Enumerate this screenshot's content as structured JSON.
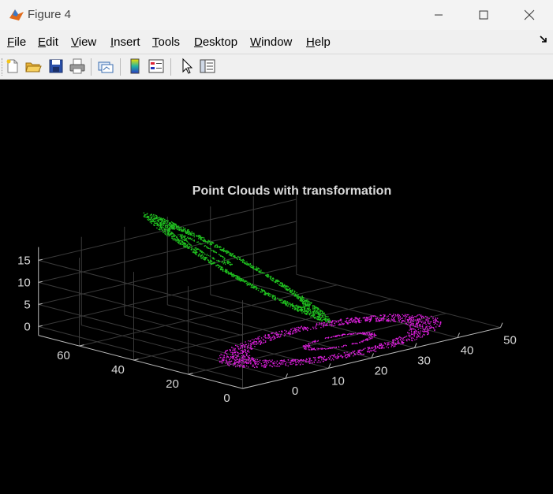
{
  "window": {
    "title": "Figure 4",
    "buttons": [
      "minimize-icon",
      "maximize-icon",
      "close-icon"
    ]
  },
  "menu": [
    {
      "label": "File",
      "key": "F"
    },
    {
      "label": "Edit",
      "key": "E"
    },
    {
      "label": "View",
      "key": "V"
    },
    {
      "label": "Insert",
      "key": "I"
    },
    {
      "label": "Tools",
      "key": "T"
    },
    {
      "label": "Desktop",
      "key": "D"
    },
    {
      "label": "Window",
      "key": "W"
    },
    {
      "label": "Help",
      "key": "H"
    }
  ],
  "toolbar": [
    "new-figure-icon",
    "open-file-icon",
    "save-icon",
    "print-icon",
    "link-plot-icon",
    "colorbar-icon",
    "legend-icon",
    "pointer-icon",
    "property-inspector-icon"
  ],
  "colors": {
    "series1": "#20c020",
    "series2": "#e020e0",
    "background": "#000000",
    "text": "#d9d9d9"
  },
  "chart_data": {
    "type": "scatter",
    "title": "Point Clouds with transformation",
    "x_axis": {
      "range": [
        -10,
        50
      ],
      "ticks": [
        "0",
        "10",
        "20",
        "30",
        "40",
        "50"
      ]
    },
    "y_axis": {
      "range": [
        0,
        75
      ],
      "ticks": [
        "0",
        "20",
        "40",
        "60"
      ]
    },
    "z_axis": {
      "range": [
        -2,
        18
      ],
      "ticks": [
        "0",
        "5",
        "10",
        "15"
      ]
    },
    "grid": true,
    "series": [
      {
        "color": "#20c020",
        "shape": "tilted-ring",
        "approx_points": [
          [
            -8,
            70,
            17
          ],
          [
            0,
            45,
            12
          ],
          [
            12,
            25,
            6
          ],
          [
            20,
            10,
            1
          ]
        ]
      },
      {
        "color": "#e020e0",
        "shape": "flat-ring",
        "approx_points": [
          [
            0,
            10,
            0
          ],
          [
            18,
            10,
            0
          ],
          [
            36,
            10,
            0
          ],
          [
            18,
            30,
            0
          ]
        ]
      }
    ]
  }
}
